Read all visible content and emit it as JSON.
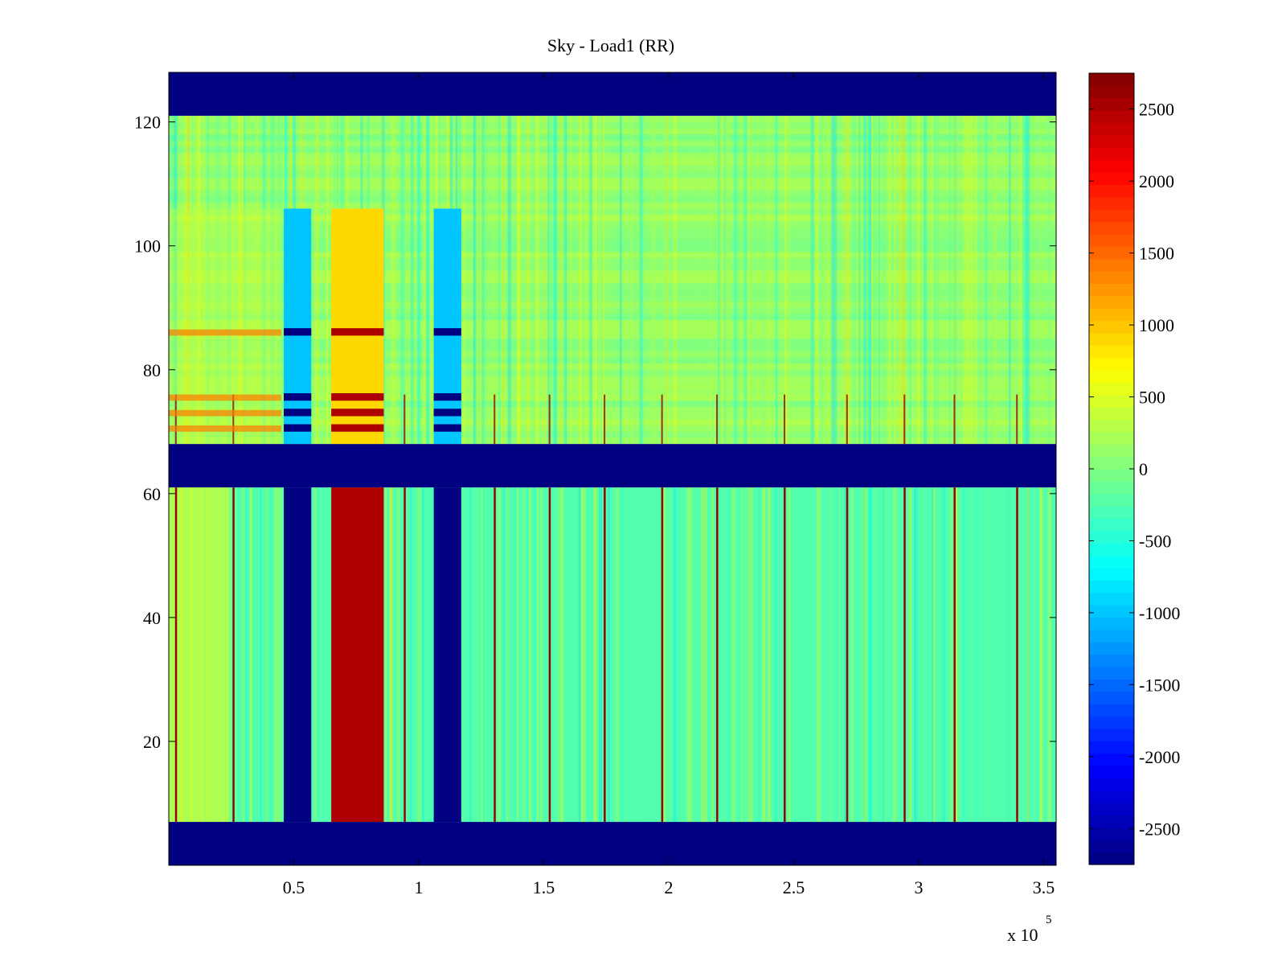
{
  "chart_data": {
    "type": "heatmap",
    "title": "Sky - Load1 (RR)",
    "xlabel": "",
    "ylabel": "",
    "x_multiplier_label": "x 10",
    "x_multiplier_exponent": "5",
    "xlim": [
      0,
      355000
    ],
    "ylim": [
      0,
      128
    ],
    "x_ticks": [
      {
        "value": 50000,
        "label": "0.5"
      },
      {
        "value": 100000,
        "label": "1"
      },
      {
        "value": 150000,
        "label": "1.5"
      },
      {
        "value": 200000,
        "label": "2"
      },
      {
        "value": 250000,
        "label": "2.5"
      },
      {
        "value": 300000,
        "label": "3"
      },
      {
        "value": 350000,
        "label": "3.5"
      }
    ],
    "y_ticks": [
      {
        "value": 20,
        "label": "20"
      },
      {
        "value": 40,
        "label": "40"
      },
      {
        "value": 60,
        "label": "60"
      },
      {
        "value": 80,
        "label": "80"
      },
      {
        "value": 100,
        "label": "100"
      },
      {
        "value": 120,
        "label": "120"
      }
    ],
    "colorbar": {
      "colormap": "jet",
      "clim": [
        -2750,
        2750
      ],
      "ticks": [
        {
          "value": 2500,
          "label": "2500"
        },
        {
          "value": 2000,
          "label": "2000"
        },
        {
          "value": 1500,
          "label": "1500"
        },
        {
          "value": 1000,
          "label": "1000"
        },
        {
          "value": 500,
          "label": "500"
        },
        {
          "value": 0,
          "label": "0"
        },
        {
          "value": -500,
          "label": "-500"
        },
        {
          "value": -1000,
          "label": "-1000"
        },
        {
          "value": -1500,
          "label": "-1500"
        },
        {
          "value": -2000,
          "label": "-2000"
        },
        {
          "value": -2500,
          "label": "-2500"
        }
      ]
    },
    "masked_rows": [
      [
        0,
        7
      ],
      [
        61,
        68
      ],
      [
        121,
        128
      ]
    ],
    "masked_value": -2750,
    "background_value_upper": 100,
    "background_value_lower": -250,
    "vertical_bands": [
      {
        "x_start": 46000,
        "x_end": 57000,
        "value_lower": -2750,
        "value_upper": -1000
      },
      {
        "x_start": 65000,
        "x_end": 86000,
        "value_lower": 2500,
        "value_upper": 900
      },
      {
        "x_start": 106000,
        "x_end": 117000,
        "value_lower": -2750,
        "value_upper": -1000
      }
    ],
    "vertical_lines_x": [
      2500,
      25500,
      94000,
      130000,
      152000,
      174000,
      197000,
      219000,
      246000,
      271000,
      294000,
      314000,
      339000
    ],
    "vertical_line_value": 2600
  }
}
